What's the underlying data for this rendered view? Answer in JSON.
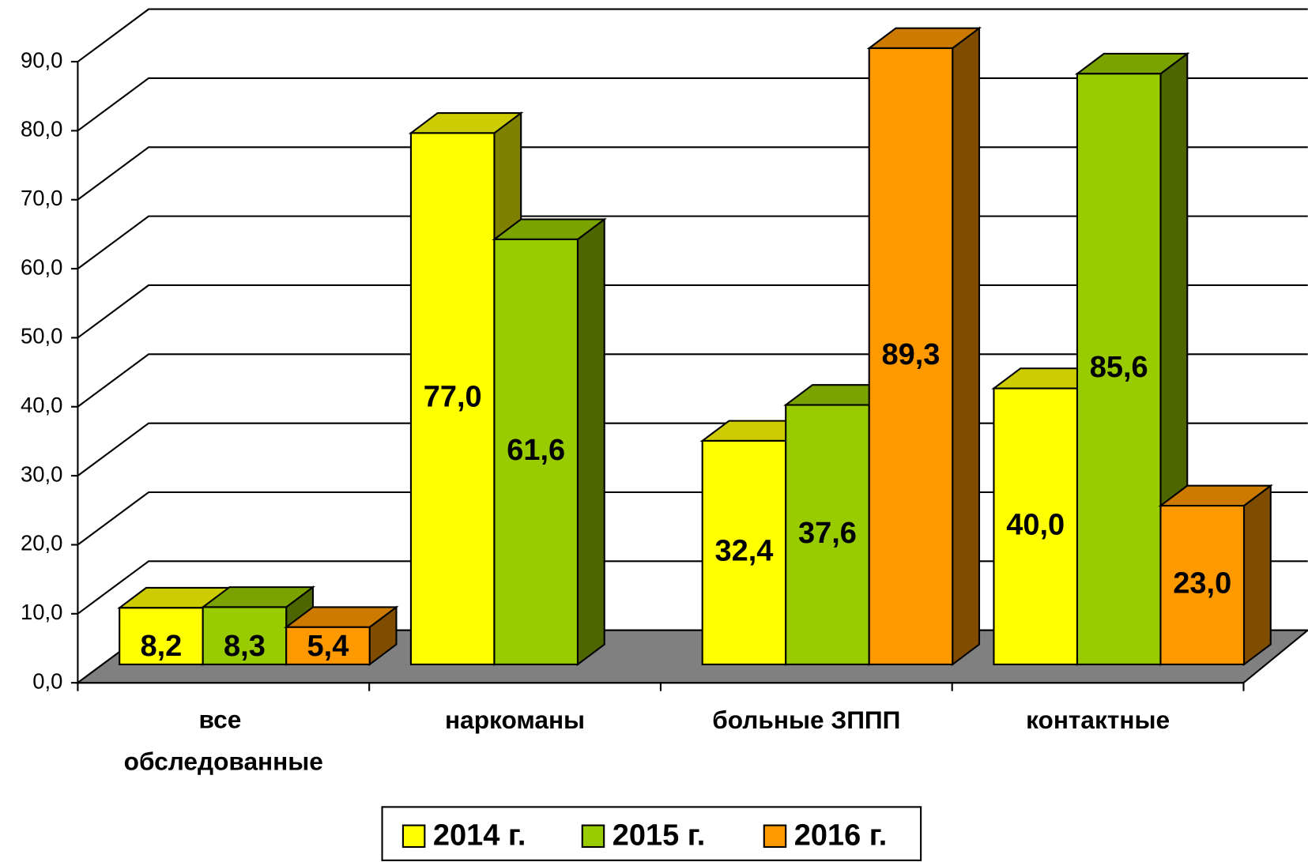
{
  "chart_data": {
    "type": "bar3d",
    "categories": [
      "все обследованные",
      "наркоманы",
      "больные ЗППП",
      "контактные"
    ],
    "series": [
      {
        "name": "2014 г.",
        "color": "#ffff00",
        "values": [
          8.2,
          77.0,
          32.4,
          40.0
        ],
        "value_labels": [
          "8,2",
          "77,0",
          "32,4",
          "40,0"
        ]
      },
      {
        "name": "2015 г.",
        "color": "#99cc00",
        "values": [
          8.3,
          61.6,
          37.6,
          85.6
        ],
        "value_labels": [
          "8,3",
          "61,6",
          "37,6",
          "85,6"
        ]
      },
      {
        "name": "2016 г.",
        "color": "#ff9900",
        "values": [
          5.4,
          null,
          89.3,
          23.0
        ],
        "value_labels": [
          "5,4",
          null,
          "89,3",
          "23,0"
        ]
      }
    ],
    "ylim": [
      0,
      90
    ],
    "yticks": [
      {
        "value": 0,
        "label": "0,0"
      },
      {
        "value": 10,
        "label": "10,0"
      },
      {
        "value": 20,
        "label": "20,0"
      },
      {
        "value": 30,
        "label": "30,0"
      },
      {
        "value": 40,
        "label": "40,0"
      },
      {
        "value": 50,
        "label": "50,0"
      },
      {
        "value": 60,
        "label": "60,0"
      },
      {
        "value": 70,
        "label": "70,0"
      },
      {
        "value": 80,
        "label": "80,0"
      },
      {
        "value": 90,
        "label": "90,0"
      }
    ],
    "grid": true,
    "legend": "bottom"
  }
}
